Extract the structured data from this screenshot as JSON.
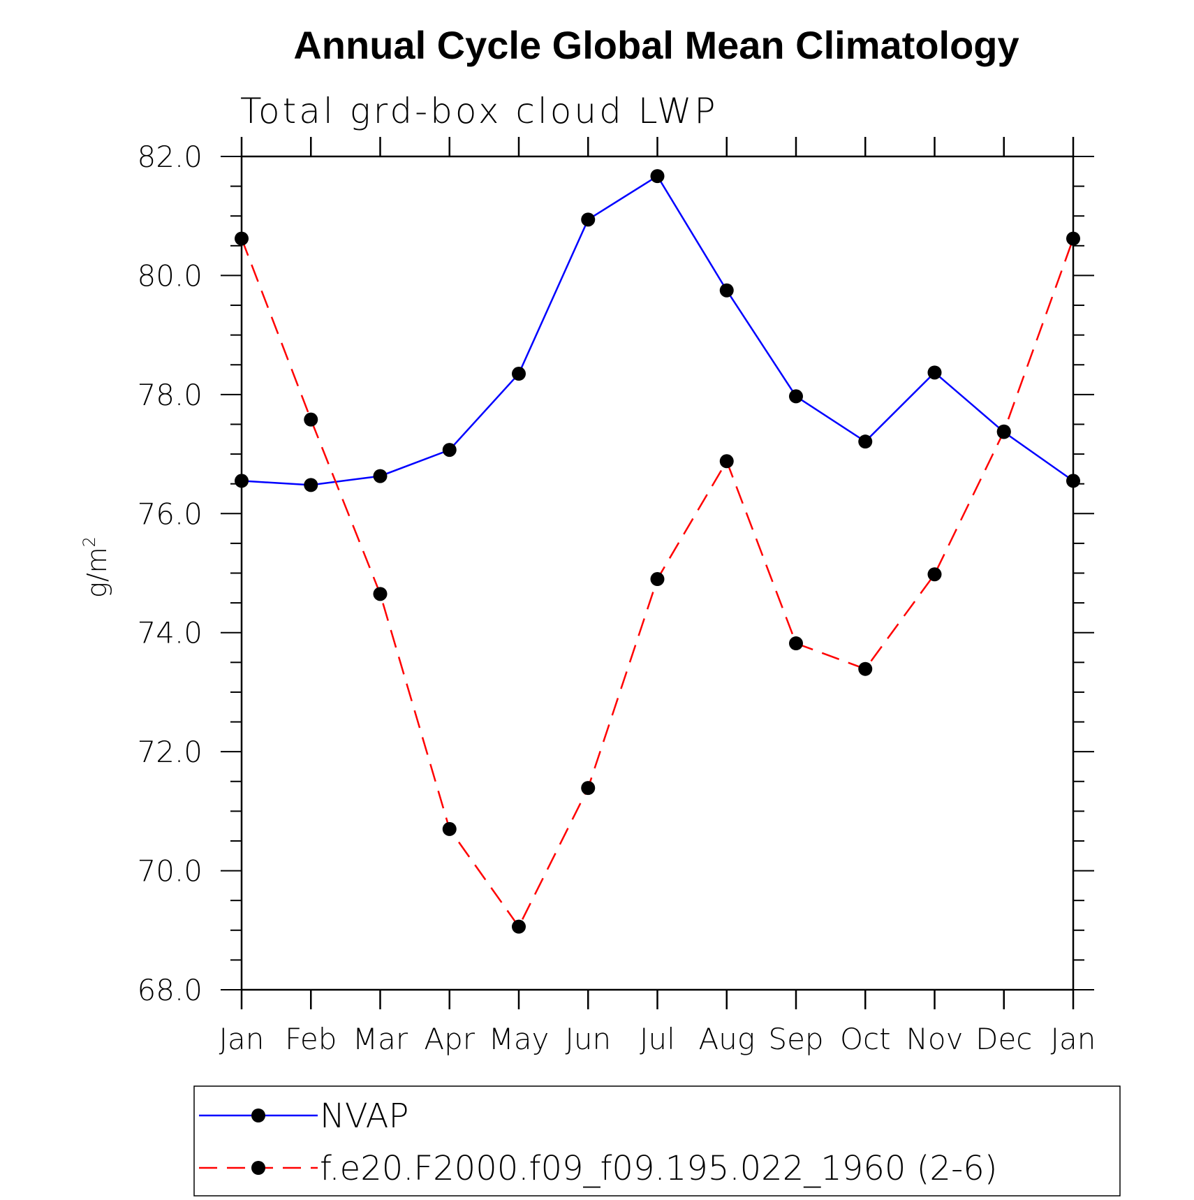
{
  "chart_data": {
    "type": "line",
    "title": "Annual Cycle Global Mean Climatology",
    "subtitle": "Total grd-box cloud LWP",
    "ylabel": "g/m",
    "ylabel_sup": "2",
    "xlabel": "",
    "ylim": [
      68.0,
      82.0
    ],
    "y_ticks": [
      "68.0",
      "70.0",
      "72.0",
      "74.0",
      "76.0",
      "78.0",
      "80.0",
      "82.0"
    ],
    "categories": [
      "Jan",
      "Feb",
      "Mar",
      "Apr",
      "May",
      "Jun",
      "Jul",
      "Aug",
      "Sep",
      "Oct",
      "Nov",
      "Dec",
      "Jan"
    ],
    "series": [
      {
        "name": "NVAP",
        "color": "#0000ff",
        "dash": "solid",
        "values": [
          76.55,
          76.48,
          76.63,
          77.07,
          78.35,
          80.94,
          81.67,
          79.75,
          77.97,
          77.21,
          78.37,
          77.37,
          76.55
        ]
      },
      {
        "name": "f.e20.F2000.f09_f09.195.022_1960 (2-6)",
        "color": "#ff0000",
        "dash": "dashed",
        "values": [
          80.62,
          77.58,
          74.65,
          70.7,
          69.06,
          71.39,
          74.9,
          76.88,
          73.82,
          73.39,
          74.98,
          77.38,
          80.62
        ]
      }
    ],
    "marker_color": "#000000",
    "legend_position": "bottom"
  }
}
